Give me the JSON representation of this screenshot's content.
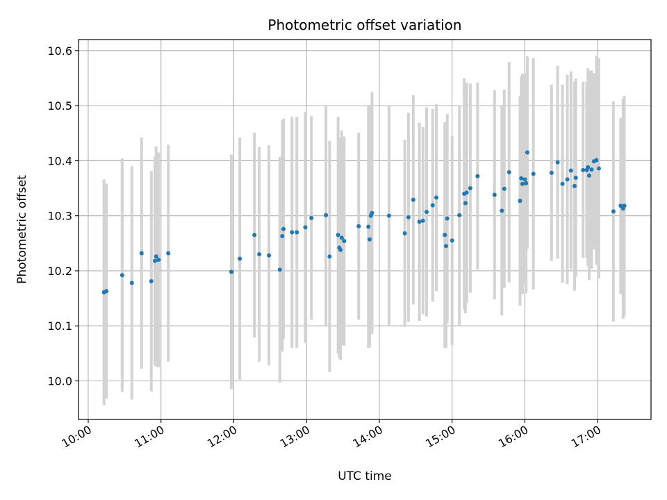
{
  "chart_data": {
    "type": "scatter",
    "title": "Photometric offset variation",
    "xlabel": "UTC time",
    "ylabel": "Photometric offset",
    "x_unit": "hours UTC (same day)",
    "xlim": [
      "09:52",
      "17:44"
    ],
    "ylim": [
      9.93,
      10.62
    ],
    "xticks": [
      "10:00",
      "11:00",
      "12:00",
      "13:00",
      "14:00",
      "15:00",
      "16:00",
      "17:00"
    ],
    "yticks": [
      10.0,
      10.1,
      10.2,
      10.3,
      10.4,
      10.5,
      10.6
    ],
    "ytick_labels": [
      "10.0",
      "10.1",
      "10.2",
      "10.3",
      "10.4",
      "10.5",
      "10.6"
    ],
    "grid": true,
    "colors": {
      "points": "#1f77b4",
      "errorbars": "#d3d3d3",
      "grid": "#b0b0b0"
    },
    "series": [
      {
        "marker": "point",
        "x": [
          "10:13",
          "10:15",
          "10:28",
          "10:36",
          "10:44",
          "10:52",
          "10:55",
          "10:56",
          "10:58",
          "11:06",
          "11:58",
          "12:05",
          "12:17",
          "12:21",
          "12:29",
          "12:38",
          "12:40",
          "12:41",
          "12:48",
          "12:52",
          "12:59",
          "13:04",
          "13:16",
          "13:19",
          "13:26",
          "13:27",
          "13:28",
          "13:29",
          "13:31",
          "13:43",
          "13:51",
          "13:52",
          "13:53",
          "13:54",
          "14:08",
          "14:21",
          "14:24",
          "14:28",
          "14:33",
          "14:36",
          "14:39",
          "14:44",
          "14:47",
          "14:54",
          "14:55",
          "14:56",
          "15:00",
          "15:06",
          "15:10",
          "15:11",
          "15:12",
          "15:15",
          "15:21",
          "15:35",
          "15:41",
          "15:43",
          "15:47",
          "15:56",
          "15:57",
          "15:58",
          "16:00",
          "16:01",
          "16:02",
          "16:07",
          "16:22",
          "16:27",
          "16:31",
          "16:35",
          "16:38",
          "16:41",
          "16:42",
          "16:48",
          "16:51",
          "16:52",
          "16:53",
          "16:55",
          "16:57",
          "16:59",
          "17:01",
          "17:13",
          "17:19",
          "17:21",
          "17:22"
        ],
        "y": [
          10.161,
          10.163,
          10.192,
          10.178,
          10.232,
          10.181,
          10.218,
          10.226,
          10.22,
          10.232,
          10.198,
          10.222,
          10.265,
          10.23,
          10.228,
          10.202,
          10.263,
          10.276,
          10.27,
          10.27,
          10.279,
          10.296,
          10.301,
          10.226,
          10.265,
          10.242,
          10.238,
          10.26,
          10.254,
          10.281,
          10.28,
          10.257,
          10.3,
          10.305,
          10.3,
          10.268,
          10.297,
          10.329,
          10.289,
          10.291,
          10.307,
          10.319,
          10.333,
          10.265,
          10.245,
          10.295,
          10.255,
          10.301,
          10.34,
          10.323,
          10.342,
          10.35,
          10.372,
          10.338,
          10.309,
          10.349,
          10.379,
          10.327,
          10.368,
          10.358,
          10.366,
          10.359,
          10.415,
          10.376,
          10.378,
          10.397,
          10.358,
          10.366,
          10.382,
          10.354,
          10.369,
          10.383,
          10.383,
          10.388,
          10.373,
          10.384,
          10.399,
          10.401,
          10.386,
          10.308,
          10.318,
          10.313,
          10.318
        ],
        "yerr": [
          0.205,
          0.195,
          0.212,
          0.212,
          0.21,
          0.2,
          0.19,
          0.2,
          0.195,
          0.197,
          0.213,
          0.22,
          0.186,
          0.195,
          0.2,
          0.205,
          0.21,
          0.2,
          0.21,
          0.21,
          0.21,
          0.185,
          0.2,
          0.21,
          0.215,
          0.2,
          0.2,
          0.195,
          0.19,
          0.17,
          0.22,
          0.195,
          0.2,
          0.22,
          0.2,
          0.17,
          0.19,
          0.19,
          0.18,
          0.17,
          0.19,
          0.175,
          0.17,
          0.205,
          0.185,
          0.19,
          0.19,
          0.2,
          0.21,
          0.2,
          0.2,
          0.19,
          0.17,
          0.19,
          0.19,
          0.18,
          0.2,
          0.19,
          0.185,
          0.2,
          0.19,
          0.2,
          0.175,
          0.21,
          0.16,
          0.175,
          0.18,
          0.19,
          0.18,
          0.19,
          0.18,
          0.16,
          0.16,
          0.18,
          0.19,
          0.18,
          0.16,
          0.19,
          0.2,
          0.2,
          0.16,
          0.2,
          0.2
        ]
      }
    ]
  }
}
